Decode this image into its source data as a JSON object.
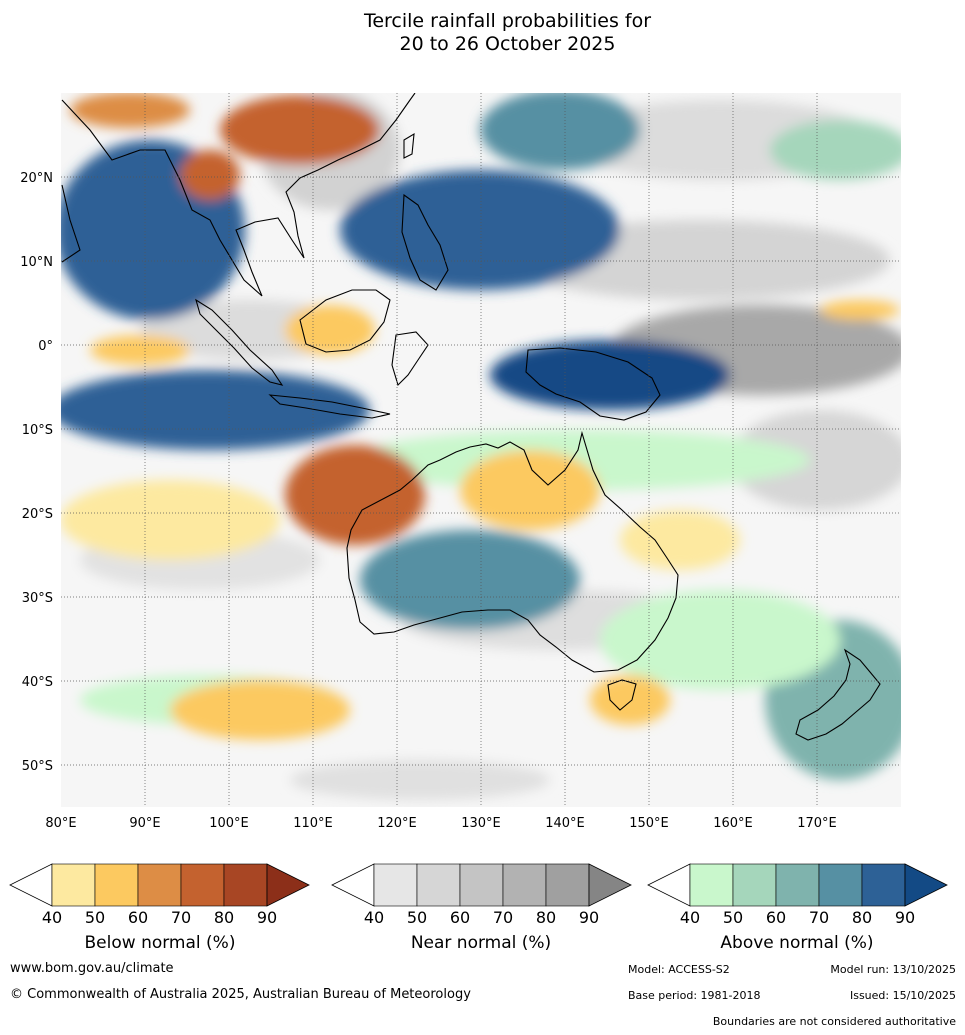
{
  "title": {
    "line1": "Tercile rainfall probabilities for",
    "line2": "20 to 26 October 2025"
  },
  "map": {
    "lon_range": [
      80,
      180
    ],
    "lat_range": [
      -55,
      30
    ],
    "lat_ticks": [
      "20°N",
      "10°N",
      "0°",
      "10°S",
      "20°S",
      "30°S",
      "40°S",
      "50°S"
    ],
    "lon_ticks": [
      "80°E",
      "90°E",
      "100°E",
      "110°E",
      "120°E",
      "130°E",
      "140°E",
      "150°E",
      "160°E",
      "170°E"
    ]
  },
  "colorbars": [
    {
      "label": "Below normal (%)",
      "ticks": [
        "40",
        "50",
        "60",
        "70",
        "80",
        "90"
      ],
      "colors": [
        "#ffffff",
        "#fde9a0",
        "#fcc960",
        "#dd8d45",
        "#c4622f",
        "#a84624",
        "#8c2f19"
      ]
    },
    {
      "label": "Near normal (%)",
      "ticks": [
        "40",
        "50",
        "60",
        "70",
        "80",
        "90"
      ],
      "colors": [
        "#ffffff",
        "#e6e6e6",
        "#d6d6d6",
        "#c4c4c4",
        "#b2b2b2",
        "#a0a0a0",
        "#858585"
      ]
    },
    {
      "label": "Above normal (%)",
      "ticks": [
        "40",
        "50",
        "60",
        "70",
        "80",
        "90"
      ],
      "colors": [
        "#ffffff",
        "#c9f7cc",
        "#a5d6bb",
        "#7fb3ad",
        "#5690a3",
        "#2d6196",
        "#134a85"
      ]
    }
  ],
  "footer": {
    "website": "www.bom.gov.au/climate",
    "copyright": "© Commonwealth of Australia 2025, Australian Bureau of Meteorology",
    "model": "Model: ACCESS-S2",
    "model_run": "Model run: 13/10/2025",
    "base_period": "Base period: 1981-2018",
    "issued": "Issued: 15/10/2025",
    "disclaimer": "Boundaries are not considered authoritative"
  }
}
